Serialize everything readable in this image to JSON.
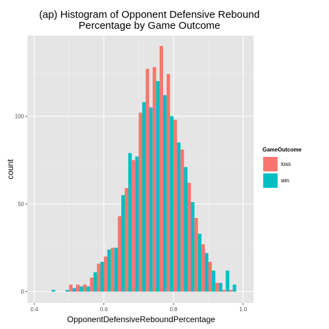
{
  "chart_data": {
    "type": "bar",
    "title_lines": [
      "(ap) Histogram of Opponent Defensive Rebound",
      "Percentage by Game Outcome"
    ],
    "xlabel": "OpponentDefensiveReboundPercentage",
    "ylabel": "count",
    "xlim": [
      0.4,
      1.0
    ],
    "ylim": [
      0,
      145
    ],
    "xticks": [
      0.4,
      0.6,
      0.8,
      1.0
    ],
    "xtick_labels": [
      "0.4",
      "0.6",
      "0.8",
      "1.0"
    ],
    "yticks": [
      0,
      50,
      100
    ],
    "ytick_labels": [
      "0",
      "50",
      "100"
    ],
    "grid": true,
    "bin_width": 0.02,
    "bin_starts": [
      0.44,
      0.46,
      0.48,
      0.5,
      0.52,
      0.54,
      0.56,
      0.58,
      0.6,
      0.62,
      0.64,
      0.66,
      0.68,
      0.7,
      0.72,
      0.74,
      0.76,
      0.78,
      0.8,
      0.82,
      0.84,
      0.86,
      0.88,
      0.9,
      0.92,
      0.94,
      0.96
    ],
    "legend": {
      "title": "GameOutcome",
      "position": "right"
    },
    "series": [
      {
        "name": "loss",
        "color": "#F8766D",
        "values": [
          0,
          0,
          0,
          4,
          4,
          4,
          8,
          16,
          20,
          25,
          43,
          59,
          75,
          102,
          127,
          128,
          140,
          124,
          98,
          81,
          62,
          42,
          27,
          17,
          5,
          1,
          1
        ]
      },
      {
        "name": "win",
        "color": "#00BFC4",
        "values": [
          1,
          0,
          1,
          2,
          3,
          3,
          11,
          17,
          24,
          25,
          55,
          79,
          77,
          108,
          105,
          120,
          112,
          100,
          85,
          71,
          51,
          33,
          22,
          12,
          5,
          12,
          4
        ]
      }
    ]
  }
}
